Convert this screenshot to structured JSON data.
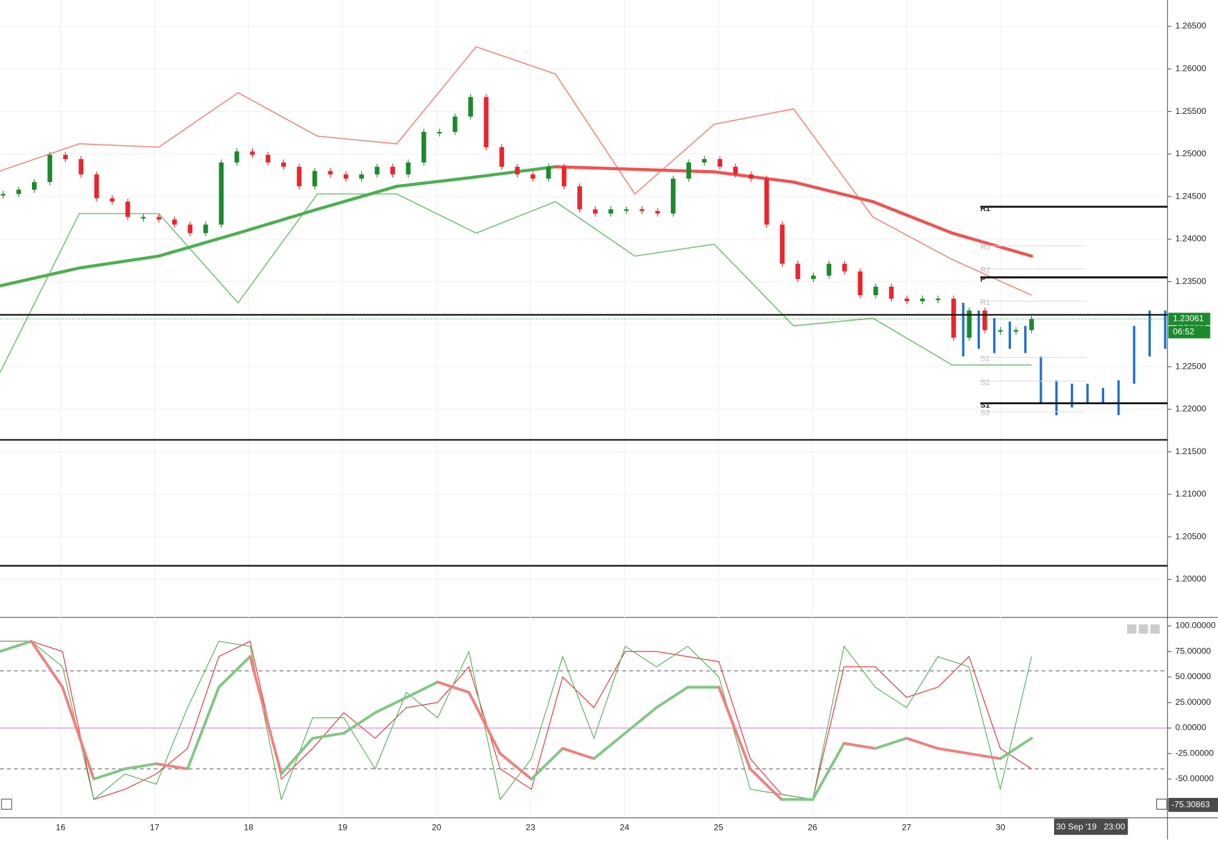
{
  "chart_data": [
    {
      "type": "candlestick",
      "categories": [
        "16",
        "17",
        "18",
        "19",
        "20",
        "23",
        "24",
        "25",
        "26",
        "27",
        "30"
      ],
      "ylim": [
        1.19553,
        1.2681
      ],
      "yticks": [
        {
          "value": 1.265,
          "label": "1.26500"
        },
        {
          "value": 1.26,
          "label": "1.26000"
        },
        {
          "value": 1.255,
          "label": "1.25500"
        },
        {
          "value": 1.25,
          "label": "1.25000"
        },
        {
          "value": 1.245,
          "label": "1.24500"
        },
        {
          "value": 1.24,
          "label": "1.24000"
        },
        {
          "value": 1.235,
          "label": "1.23500"
        },
        {
          "value": 1.23,
          "label": "1.23000"
        },
        {
          "value": 1.225,
          "label": "1.22500"
        },
        {
          "value": 1.22,
          "label": "1.22000"
        },
        {
          "value": 1.215,
          "label": "1.21500"
        },
        {
          "value": 1.21,
          "label": "1.21000"
        },
        {
          "value": 1.205,
          "label": "1.20500"
        },
        {
          "value": 1.2,
          "label": "1.20000"
        }
      ],
      "grid": true,
      "up_color": "#1b8a2e",
      "down_color": "#e8262e",
      "closes": [
        1.2453,
        1.2458,
        1.2467,
        1.2499,
        1.2494,
        1.2476,
        1.2448,
        1.2444,
        1.2426,
        1.2426,
        1.2423,
        1.2417,
        1.2407,
        1.2417,
        1.249,
        1.2503,
        1.2499,
        1.249,
        1.2485,
        1.2462,
        1.248,
        1.2476,
        1.2471,
        1.2476,
        1.2485,
        1.2476,
        1.249,
        1.2526,
        1.2526,
        1.2544,
        1.2567,
        1.2508,
        1.2485,
        1.2476,
        1.2471,
        1.2485,
        1.2462,
        1.2435,
        1.243,
        1.2435,
        1.2435,
        1.2433,
        1.243,
        1.2471,
        1.249,
        1.2494,
        1.2485,
        1.2476,
        1.2471,
        1.2417,
        1.2371,
        1.2353,
        1.2357,
        1.2371,
        1.2362,
        1.2334,
        1.2344,
        1.233,
        1.2327,
        1.233,
        1.233,
        1.2284,
        1.2316,
        1.2293,
        1.2293,
        1.2293,
        1.2306
      ],
      "moving_average": [
        1.2345,
        1.2366,
        1.238,
        1.2407,
        1.2435,
        1.2462,
        1.2473,
        1.2485,
        1.2482,
        1.2479,
        1.2467,
        1.2444,
        1.2407,
        1.238
      ],
      "band_upper": [
        1.248,
        1.2512,
        1.2508,
        1.2572,
        1.2521,
        1.2512,
        1.2626,
        1.2594,
        1.2453,
        1.2535,
        1.2553,
        1.2426,
        1.2376,
        1.2334
      ],
      "band_lower": [
        1.2243,
        1.243,
        1.243,
        1.2325,
        1.2453,
        1.2453,
        1.2407,
        1.2444,
        1.238,
        1.2394,
        1.2298,
        1.2307,
        1.2252,
        1.2252
      ],
      "band_upper_color": "#f28b82",
      "band_lower_color": "#7cc47f",
      "projection_high": [
        1.2325,
        1.2316,
        1.2307,
        1.2303,
        1.2298,
        1.2262,
        1.2234,
        1.223,
        1.223,
        1.2225,
        1.2234,
        1.2298,
        1.2316,
        1.2316
      ],
      "projection_low": [
        1.2262,
        1.2271,
        1.2266,
        1.2271,
        1.2266,
        1.2207,
        1.2193,
        1.2202,
        1.2207,
        1.2207,
        1.2193,
        1.223,
        1.2262,
        1.2271
      ],
      "projection_color": "#1e6fcc",
      "levels": [
        1.2311,
        1.2164,
        1.2016
      ],
      "pivots": [
        {
          "label": "R1",
          "value": 1.2438
        },
        {
          "label": "P",
          "value": 1.2355
        },
        {
          "label": "S1",
          "value": 1.2207
        }
      ],
      "minor_pivots": [
        {
          "label": "R3",
          "value": 1.2392
        },
        {
          "label": "R2",
          "value": 1.2365
        },
        {
          "label": "R1",
          "value": 1.2327
        },
        {
          "label": "S1",
          "value": 1.2261
        },
        {
          "label": "S2",
          "value": 1.2233
        },
        {
          "label": "S3",
          "value": 1.2197
        }
      ],
      "last_price": {
        "value": 1.23061,
        "label": "1.23061"
      },
      "countdown": "06:52",
      "crosshair_label": "30 Sep '19   23:00"
    },
    {
      "type": "line",
      "ylim": [
        -87.93,
        108.37
      ],
      "yticks": [
        {
          "value": 100,
          "label": "100.00000"
        },
        {
          "value": 75,
          "label": "75.00000"
        },
        {
          "value": 50,
          "label": "50.00000"
        },
        {
          "value": 25,
          "label": "25.00000"
        },
        {
          "value": 0,
          "label": "0.00000"
        },
        {
          "value": -25,
          "label": "-25.00000"
        },
        {
          "value": -50,
          "label": "-50.00000"
        }
      ],
      "bands": [
        56,
        -40
      ],
      "fast": [
        85,
        85,
        60,
        -70,
        -45,
        -55,
        20,
        85,
        80,
        -70,
        10,
        10,
        -40,
        35,
        10,
        75,
        -70,
        -30,
        70,
        -10,
        80,
        60,
        80,
        50,
        -60,
        -65,
        -70,
        80,
        40,
        20,
        70,
        60,
        -60,
        70
      ],
      "slow": [
        85,
        85,
        75,
        -70,
        -60,
        -45,
        -20,
        70,
        85,
        -50,
        -20,
        15,
        -10,
        20,
        25,
        60,
        -40,
        -60,
        50,
        20,
        75,
        75,
        70,
        65,
        -30,
        -65,
        -70,
        60,
        60,
        30,
        40,
        70,
        -20,
        -40
      ],
      "smooth": [
        75,
        85,
        40,
        -50,
        -40,
        -35,
        -40,
        40,
        70,
        -45,
        -10,
        -5,
        15,
        30,
        45,
        35,
        -25,
        -50,
        -20,
        -30,
        -5,
        20,
        40,
        40,
        -40,
        -70,
        -70,
        -15,
        -20,
        -10,
        -20,
        -25,
        -30,
        -10
      ],
      "cursor_value": {
        "value": -75.30863,
        "label": "-75.30863"
      }
    }
  ]
}
